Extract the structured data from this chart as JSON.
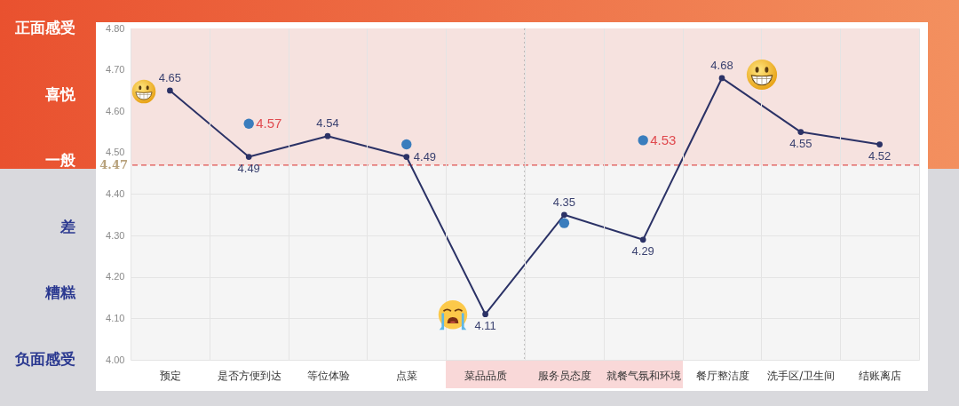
{
  "chart_data": {
    "type": "line",
    "categories": [
      "预定",
      "是否方便到达",
      "等位体验",
      "点菜",
      "菜品品质",
      "服务员态度",
      "就餐气氛和环境",
      "餐厅整洁度",
      "洗手区/卫生间",
      "结账离店"
    ],
    "series": [
      {
        "color": "#2b3266",
        "values": [
          4.65,
          4.49,
          4.54,
          4.49,
          4.11,
          4.35,
          4.29,
          4.68,
          4.55,
          4.52
        ],
        "value_labels": [
          "4.65",
          "4.49",
          "4.54",
          "4.49",
          "4.11",
          "4.35",
          "4.29",
          "4.68",
          "4.55",
          "4.52"
        ]
      },
      {
        "type": "scatter",
        "color": "#3a7dbd",
        "values": [
          null,
          4.57,
          null,
          4.52,
          null,
          4.33,
          4.53,
          null,
          null,
          null
        ],
        "value_labels": [
          null,
          "4.57",
          null,
          null,
          null,
          null,
          "4.53",
          null,
          null,
          null
        ]
      }
    ],
    "ylim": [
      4.0,
      4.8
    ],
    "yticks": [
      {
        "value": 4.0,
        "label": "4.00"
      },
      {
        "value": 4.1,
        "label": "4.10"
      },
      {
        "value": 4.2,
        "label": "4.20"
      },
      {
        "value": 4.3,
        "label": "4.30"
      },
      {
        "value": 4.4,
        "label": "4.40"
      },
      {
        "value": 4.5,
        "label": "4.50"
      },
      {
        "value": 4.6,
        "label": "4.60"
      },
      {
        "value": 4.7,
        "label": "4.70"
      },
      {
        "value": 4.8,
        "label": "4.80"
      }
    ],
    "annotations": [
      "正面感受",
      "喜悦",
      "一般",
      "差",
      "糟糕",
      "负面感受"
    ],
    "ref_lines": [
      {
        "axis": "y",
        "value": 4.47,
        "label": "4.47",
        "color": "#e0524f",
        "line_style": "dashed"
      },
      {
        "axis": "x",
        "value": "服务员态度",
        "color": "#8c8c8c",
        "line_style": "dotted"
      }
    ],
    "bands": [
      {
        "axis": "y",
        "from": 4.47,
        "to": 4.8,
        "color": "#f6e2df"
      }
    ],
    "grid": true,
    "marker": "circle",
    "line_style": "solid"
  }
}
